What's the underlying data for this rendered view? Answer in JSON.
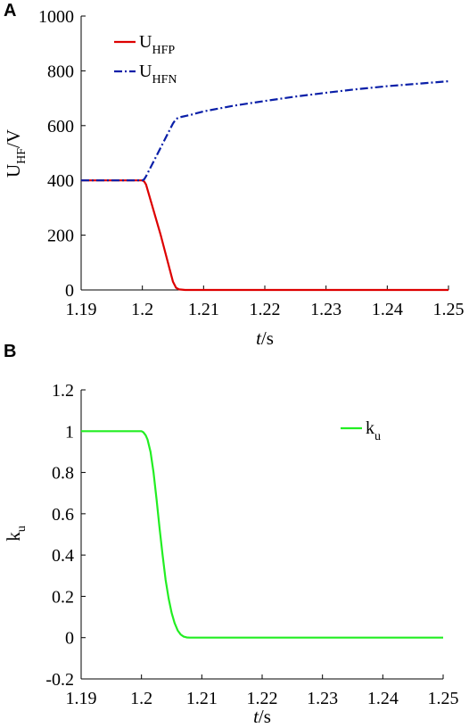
{
  "chart_data": [
    {
      "panel": "A",
      "type": "line",
      "xlabel_italic": "t",
      "xlabel_rest": "/s",
      "ylabel_main": "U",
      "ylabel_sub": "HF",
      "ylabel_rest": "/V",
      "xlim": [
        1.19,
        1.25
      ],
      "ylim": [
        0,
        1000
      ],
      "xticks": [
        "1.19",
        "1.2",
        "1.21",
        "1.22",
        "1.23",
        "1.24",
        "1.25"
      ],
      "yticks": [
        "0",
        "200",
        "400",
        "600",
        "800",
        "1000"
      ],
      "grid": false,
      "legend_position": "top-left",
      "series": [
        {
          "name_main": "U",
          "name_sub": "HFP",
          "color": "#dd0000",
          "style": "solid",
          "x": [
            1.19,
            1.2,
            1.2003,
            1.2006,
            1.203,
            1.205,
            1.2055,
            1.206,
            1.207,
            1.25
          ],
          "y": [
            400,
            400,
            396,
            385,
            200,
            30,
            8,
            2,
            0,
            0
          ]
        },
        {
          "name_main": "U",
          "name_sub": "HFN",
          "color": "#0a1fa8",
          "style": "dashdot",
          "x": [
            1.19,
            1.2,
            1.2003,
            1.2006,
            1.203,
            1.205,
            1.2055,
            1.206,
            1.208,
            1.21,
            1.215,
            1.22,
            1.225,
            1.23,
            1.235,
            1.24,
            1.245,
            1.25
          ],
          "y": [
            400,
            400,
            404,
            415,
            520,
            608,
            624,
            630,
            640,
            652,
            673,
            690,
            706,
            720,
            733,
            744,
            753,
            762
          ]
        }
      ]
    },
    {
      "panel": "B",
      "type": "line",
      "xlabel_italic": "t",
      "xlabel_rest": "/s",
      "ylabel_main": "k",
      "ylabel_sub": "u",
      "ylabel_rest": "",
      "xlim": [
        1.19,
        1.25
      ],
      "ylim": [
        -0.2,
        1.2
      ],
      "xticks": [
        "1.19",
        "1.2",
        "1.21",
        "1.22",
        "1.23",
        "1.24",
        "1.25"
      ],
      "yticks": [
        "-0.2",
        "0",
        "0.2",
        "0.4",
        "0.6",
        "0.8",
        "1",
        "1.2"
      ],
      "grid": false,
      "legend_position": "top-right",
      "series": [
        {
          "name_main": "k",
          "name_sub": "u",
          "color": "#22ee22",
          "style": "solid",
          "x": [
            1.19,
            1.2,
            1.2003,
            1.2007,
            1.201,
            1.2015,
            1.202,
            1.2025,
            1.203,
            1.2035,
            1.204,
            1.2045,
            1.205,
            1.2055,
            1.206,
            1.2065,
            1.207,
            1.2075,
            1.208,
            1.25
          ],
          "y": [
            1,
            1,
            0.995,
            0.98,
            0.96,
            0.9,
            0.8,
            0.67,
            0.53,
            0.4,
            0.28,
            0.19,
            0.12,
            0.07,
            0.035,
            0.015,
            0.005,
            0.001,
            0,
            0
          ]
        }
      ]
    }
  ]
}
